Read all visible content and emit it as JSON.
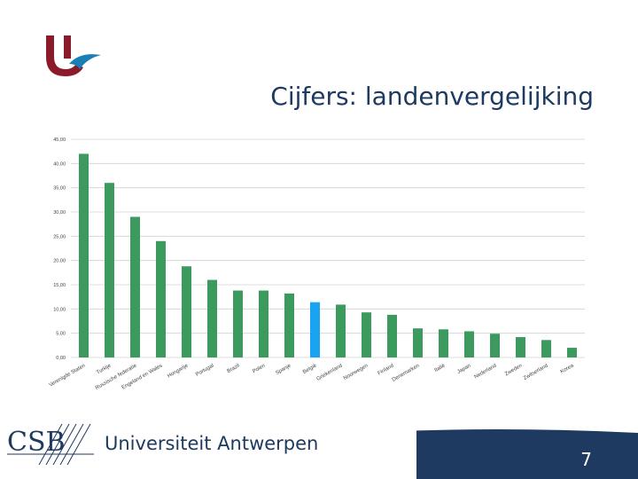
{
  "slide": {
    "title": "Cijfers: landenvergelijking",
    "university": "Universiteit Antwerpen",
    "csb_logo": "CSB",
    "page_number": "7"
  },
  "colors": {
    "bar": "#3c9a5f",
    "highlight": "#1aa3f0",
    "footer_band": "#1f3a60",
    "logo_red": "#8b1a2b",
    "logo_blue": "#1a7fb5"
  },
  "chart_data": {
    "type": "bar",
    "title": "",
    "xlabel": "",
    "ylabel": "",
    "ylim": [
      0,
      45
    ],
    "grid": true,
    "y_ticks": [
      "0,00",
      "5,00",
      "10,00",
      "15,00",
      "20,00",
      "25,00",
      "30,00",
      "35,00",
      "40,00",
      "45,00"
    ],
    "categories": [
      "Verenigde Staten",
      "Turkije",
      "Russische federatie",
      "Engeland en Wales",
      "Hongarije",
      "Portugal",
      "Brazil",
      "Polen",
      "Spanje",
      "België",
      "Griekenland",
      "Noorwegen",
      "Finland",
      "Denemarken",
      "Italië",
      "Japan",
      "Nederland",
      "Zweden",
      "Zwitserland",
      "Korea"
    ],
    "values": [
      42.0,
      36.0,
      29.0,
      24.0,
      18.8,
      16.0,
      13.8,
      13.8,
      13.2,
      11.4,
      10.9,
      9.3,
      8.8,
      6.0,
      5.8,
      5.4,
      4.9,
      4.2,
      3.6,
      2.0
    ],
    "highlight": "België"
  }
}
